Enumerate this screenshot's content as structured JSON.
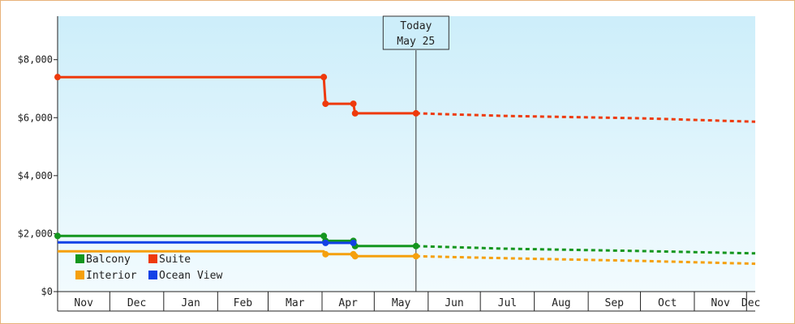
{
  "chart_data": {
    "type": "line",
    "title": "",
    "xlabel": "",
    "ylabel": "",
    "ylim": [
      0,
      9500
    ],
    "y_ticks": [
      0,
      2000,
      4000,
      6000,
      8000
    ],
    "y_tick_labels": [
      "$0",
      "$2,000",
      "$4,000",
      "$6,000",
      "$8,000"
    ],
    "x_range": [
      "2023-11-01",
      "2024-12-06"
    ],
    "months": [
      {
        "label": "Nov",
        "start": "2023-11-01"
      },
      {
        "label": "Dec",
        "start": "2023-12-01"
      },
      {
        "label": "Jan",
        "start": "2024-01-01"
      },
      {
        "label": "Feb",
        "start": "2024-02-01"
      },
      {
        "label": "Mar",
        "start": "2024-03-01"
      },
      {
        "label": "Apr",
        "start": "2024-04-01"
      },
      {
        "label": "May",
        "start": "2024-05-01"
      },
      {
        "label": "Jun",
        "start": "2024-06-01"
      },
      {
        "label": "Jul",
        "start": "2024-07-01"
      },
      {
        "label": "Aug",
        "start": "2024-08-01"
      },
      {
        "label": "Sep",
        "start": "2024-09-01"
      },
      {
        "label": "Oct",
        "start": "2024-10-01"
      },
      {
        "label": "Nov",
        "start": "2024-11-01"
      },
      {
        "label": "Dec",
        "start": "2024-12-01"
      }
    ],
    "today": {
      "line1": "Today",
      "line2": "May 25",
      "date": "2024-05-25"
    },
    "series": [
      {
        "name": "Suite",
        "color": "#ee3a0c",
        "points": [
          [
            "2023-11-01",
            7400
          ],
          [
            "2024-04-02",
            7400
          ],
          [
            "2024-04-03",
            6480
          ],
          [
            "2024-04-19",
            6480
          ],
          [
            "2024-04-20",
            6150
          ],
          [
            "2024-05-25",
            6150
          ]
        ],
        "forecast": [
          [
            "2024-05-25",
            6150
          ],
          [
            "2024-07-15",
            6060
          ],
          [
            "2024-10-01",
            5980
          ],
          [
            "2024-12-06",
            5860
          ]
        ]
      },
      {
        "name": "Balcony",
        "color": "#14961e",
        "points": [
          [
            "2023-11-01",
            1920
          ],
          [
            "2024-04-02",
            1920
          ],
          [
            "2024-04-03",
            1750
          ],
          [
            "2024-04-19",
            1750
          ],
          [
            "2024-04-20",
            1570
          ],
          [
            "2024-05-25",
            1570
          ]
        ],
        "forecast": [
          [
            "2024-05-25",
            1570
          ],
          [
            "2024-07-15",
            1480
          ],
          [
            "2024-10-01",
            1400
          ],
          [
            "2024-12-06",
            1320
          ]
        ]
      },
      {
        "name": "Ocean View",
        "color": "#1241e6",
        "points": [
          [
            "2023-11-01",
            1700
          ],
          [
            "2024-04-02",
            1700
          ],
          [
            "2024-04-03",
            1680
          ],
          [
            "2024-04-19",
            1680
          ]
        ],
        "forecast": []
      },
      {
        "name": "Interior",
        "color": "#f5a00d",
        "points": [
          [
            "2023-11-01",
            1390
          ],
          [
            "2024-04-02",
            1390
          ],
          [
            "2024-04-03",
            1290
          ],
          [
            "2024-04-19",
            1290
          ],
          [
            "2024-04-20",
            1220
          ],
          [
            "2024-05-25",
            1220
          ]
        ],
        "forecast": [
          [
            "2024-05-25",
            1220
          ],
          [
            "2024-07-15",
            1150
          ],
          [
            "2024-10-01",
            1060
          ],
          [
            "2024-12-06",
            960
          ]
        ]
      }
    ],
    "markers": [
      {
        "series": "Suite",
        "points": [
          [
            "2023-11-01",
            7400
          ],
          [
            "2024-04-02",
            7400
          ],
          [
            "2024-04-03",
            6480
          ],
          [
            "2024-04-19",
            6480
          ],
          [
            "2024-04-20",
            6150
          ],
          [
            "2024-05-25",
            6150
          ]
        ]
      },
      {
        "series": "Balcony",
        "points": [
          [
            "2023-11-01",
            1920
          ],
          [
            "2024-04-02",
            1920
          ],
          [
            "2024-04-03",
            1750
          ],
          [
            "2024-04-19",
            1750
          ],
          [
            "2024-04-20",
            1570
          ],
          [
            "2024-05-25",
            1570
          ]
        ]
      },
      {
        "series": "Ocean View",
        "points": [
          [
            "2024-04-03",
            1680
          ],
          [
            "2024-04-19",
            1680
          ]
        ]
      },
      {
        "series": "Interior",
        "points": [
          [
            "2024-04-03",
            1290
          ],
          [
            "2024-04-19",
            1290
          ],
          [
            "2024-04-20",
            1220
          ],
          [
            "2024-05-25",
            1220
          ]
        ]
      }
    ],
    "legend": [
      {
        "name": "Balcony",
        "color": "#14961e"
      },
      {
        "name": "Suite",
        "color": "#ee3a0c"
      },
      {
        "name": "Interior",
        "color": "#f5a00d"
      },
      {
        "name": "Ocean View",
        "color": "#1241e6"
      }
    ],
    "legend_position": "bottom-left",
    "background_gradient": [
      "#cdeefa",
      "#f2fbfe"
    ]
  }
}
